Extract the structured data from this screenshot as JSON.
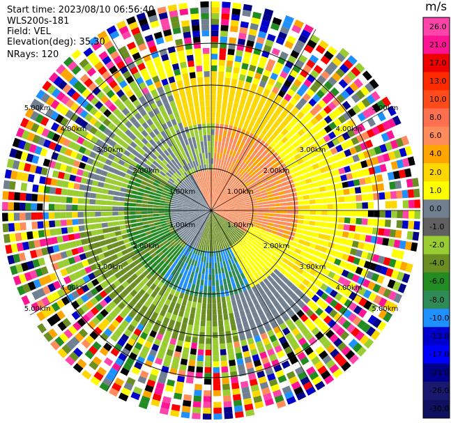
{
  "meta": {
    "start_time": "Start time: 2023/08/10 06:56:40",
    "instrument": "WLS200s-181",
    "field": "Field: VEL",
    "elevation": "Elevation(deg): 35.30",
    "nrays": "NRays: 120"
  },
  "colorbar": {
    "unit": "m/s",
    "ticks": [
      "26.0",
      "21.0",
      "17.0",
      "13.0",
      "10.0",
      "8.0",
      "6.0",
      "4.0",
      "2.0",
      "1.0",
      "0.0",
      "-1.0",
      "-2.0",
      "-4.0",
      "-6.0",
      "-8.0",
      "-10.0",
      "-13.0",
      "-17.0",
      "-21.0",
      "-26.0",
      "-30.0"
    ],
    "colors": [
      "#ff44aa",
      "#ff1493",
      "#ee0000",
      "#ff2a00",
      "#ff4a1a",
      "#ff7050",
      "#ff8c5a",
      "#ffa500",
      "#ffd700",
      "#ffff00",
      "#708090",
      "#606060",
      "#9acd32",
      "#6b8e23",
      "#228b22",
      "#2e8b57",
      "#1e90ff",
      "#0000cd",
      "#0000ff",
      "#00008b",
      "#191970",
      "#101060"
    ]
  },
  "range_labels": [
    "1.00km",
    "2.00km",
    "3.00km",
    "4.00km",
    "5.00km"
  ],
  "palette": [
    "#ff1493",
    "#ff0000",
    "#ffff00",
    "#1e90ff",
    "#0000cd",
    "#228b22",
    "#9acd32",
    "#708090",
    "#ff8c5a",
    "#ffa500",
    "#00008b",
    "#ff44aa",
    "#ffd700",
    "#6b8e23",
    "#000000"
  ]
}
